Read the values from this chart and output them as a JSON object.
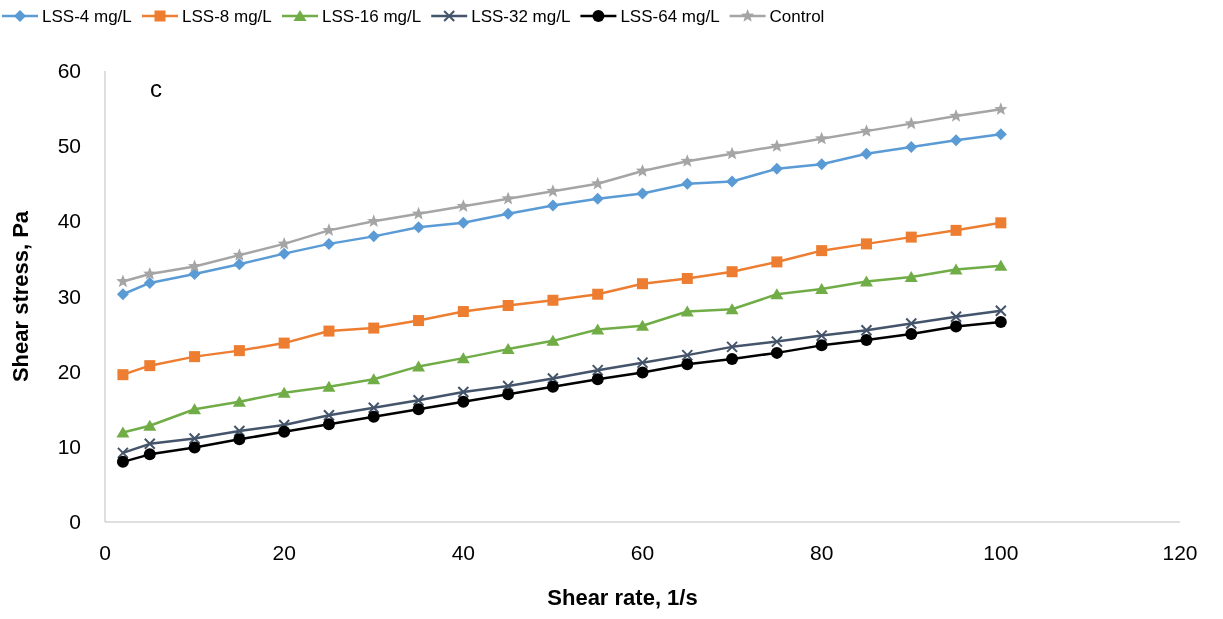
{
  "chart_data": {
    "type": "line",
    "xlabel": "Shear rate, 1/s",
    "ylabel": "Shear stress, Pa",
    "annotations": [
      "c"
    ],
    "x": [
      2,
      5,
      10,
      15,
      20,
      25,
      30,
      35,
      40,
      45,
      50,
      55,
      60,
      65,
      70,
      75,
      80,
      85,
      90,
      95,
      100
    ],
    "xlim": [
      0,
      120
    ],
    "xticks": [
      0,
      20,
      40,
      60,
      80,
      100,
      120
    ],
    "ylim": [
      0,
      60
    ],
    "yticks": [
      0,
      10,
      20,
      30,
      40,
      50,
      60
    ],
    "grid": false,
    "legend": "top",
    "line_style": "solid",
    "series": [
      {
        "name": "LSS-4 mg/L",
        "color": "#5b9bd5",
        "marker": "diamond",
        "values": [
          30.3,
          31.8,
          33,
          34.3,
          35.7,
          37,
          38,
          39.2,
          39.8,
          41,
          42.1,
          43,
          43.7,
          45,
          45.3,
          47,
          47.6,
          49,
          49.9,
          50.8,
          51.6
        ]
      },
      {
        "name": "LSS-8 mg/L",
        "color": "#ed7d31",
        "marker": "square",
        "values": [
          19.6,
          20.8,
          22,
          22.8,
          23.8,
          25.4,
          25.8,
          26.8,
          28,
          28.8,
          29.5,
          30.3,
          31.7,
          32.4,
          33.3,
          34.6,
          36.1,
          37,
          37.9,
          38.8,
          39.8
        ]
      },
      {
        "name": "LSS-16 mg/L",
        "color": "#70ad47",
        "marker": "triangle",
        "values": [
          11.9,
          12.8,
          15,
          16,
          17.2,
          18,
          19,
          20.7,
          21.8,
          23,
          24.1,
          25.6,
          26.1,
          28,
          28.3,
          30.3,
          31,
          32,
          32.6,
          33.6,
          34.1
        ]
      },
      {
        "name": "LSS-32 mg/L",
        "color": "#44546a",
        "marker": "cross",
        "values": [
          9.2,
          10.4,
          11.1,
          12.1,
          12.9,
          14.2,
          15.2,
          16.2,
          17.3,
          18.1,
          19.1,
          20.2,
          21.2,
          22.2,
          23.3,
          24,
          24.8,
          25.5,
          26.4,
          27.3,
          28.1
        ]
      },
      {
        "name": "LSS-64 mg/L",
        "color": "#000000",
        "marker": "circle",
        "values": [
          8,
          9,
          9.9,
          11,
          12,
          13,
          14,
          15,
          16,
          17,
          18,
          19,
          19.9,
          21,
          21.7,
          22.5,
          23.5,
          24.2,
          25,
          26,
          26.6
        ]
      },
      {
        "name": "Control",
        "color": "#a5a5a5",
        "marker": "star",
        "values": [
          32,
          33,
          34,
          35.5,
          37,
          38.8,
          40,
          41,
          42,
          43,
          44,
          45,
          46.7,
          48,
          49,
          50,
          51,
          52,
          53,
          54,
          54.9
        ]
      }
    ]
  }
}
